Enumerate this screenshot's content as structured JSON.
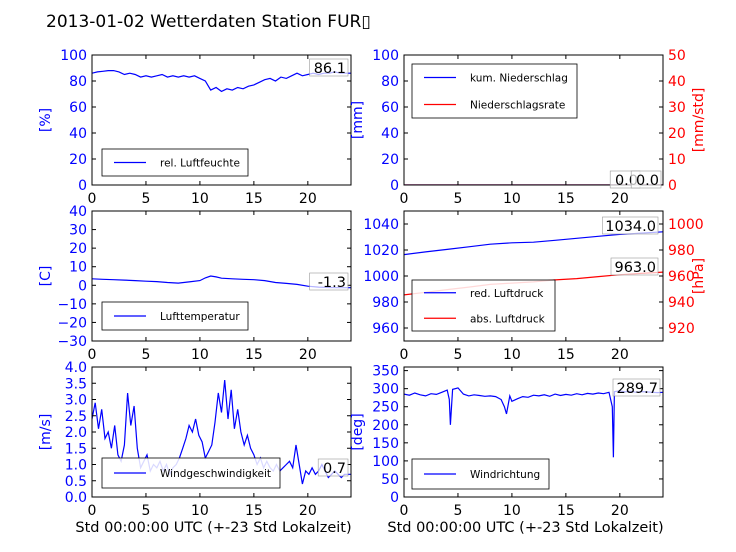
{
  "title": "2013-01-02 Wetterdaten Station FUR▯",
  "chart_data": [
    {
      "id": "humidity",
      "type": "line",
      "ylabel": "[%]",
      "xlim": [
        0,
        24
      ],
      "ylim": [
        0,
        100
      ],
      "yticks": [
        "0",
        "20",
        "40",
        "60",
        "80",
        "100"
      ],
      "xticks": [
        "0",
        "5",
        "10",
        "15",
        "20"
      ],
      "last_value_label": "86.1",
      "legend": [
        "rel. Luftfeuchte"
      ],
      "series": [
        {
          "name": "rel. Luftfeuchte",
          "color": "#0000ff",
          "x": [
            0,
            0.5,
            1,
            1.5,
            2,
            2.5,
            3,
            3.5,
            4,
            4.5,
            5,
            5.5,
            6,
            6.5,
            7,
            7.5,
            8,
            8.5,
            9,
            9.5,
            10,
            10.5,
            11,
            11.5,
            12,
            12.5,
            13,
            13.5,
            14,
            14.5,
            15,
            15.5,
            16,
            16.5,
            17,
            17.5,
            18,
            18.5,
            19,
            19.5,
            20,
            20.5,
            21,
            21.5,
            22,
            22.5,
            23,
            23.5,
            24
          ],
          "y": [
            86,
            87,
            87.5,
            88,
            88,
            87,
            85,
            86,
            85,
            83,
            84,
            83,
            84,
            85,
            83,
            84,
            83,
            84,
            83,
            84,
            82,
            80,
            73,
            75,
            72,
            74,
            73,
            75,
            74,
            76,
            77,
            79,
            81,
            82,
            80,
            83,
            82,
            84,
            86,
            84,
            85,
            86,
            85,
            86,
            86,
            87,
            86,
            86,
            86
          ]
        }
      ]
    },
    {
      "id": "precip",
      "type": "line",
      "ylabel": "[mm]",
      "y2label": "[mm/std]",
      "xlim": [
        0,
        24
      ],
      "ylim": [
        0,
        100
      ],
      "y2lim": [
        0,
        50
      ],
      "yticks": [
        "0",
        "20",
        "40",
        "60",
        "80",
        "100"
      ],
      "y2ticks": [
        "0",
        "10",
        "20",
        "30",
        "40",
        "50"
      ],
      "xticks": [
        "0",
        "5",
        "10",
        "15",
        "20"
      ],
      "last_value_labels": [
        "0.0",
        "0.0"
      ],
      "legend": [
        "kum. Niederschlag",
        "Niederschlagsrate"
      ],
      "series": [
        {
          "name": "kum. Niederschlag",
          "color": "#0000ff",
          "x": [
            0,
            24
          ],
          "y": [
            0,
            0
          ]
        },
        {
          "name": "Niederschlagsrate",
          "color": "#ff0000",
          "x": [
            0,
            24
          ],
          "y": [
            0,
            0
          ]
        }
      ]
    },
    {
      "id": "temperature",
      "type": "line",
      "ylabel": "[C]",
      "xlim": [
        0,
        24
      ],
      "ylim": [
        -30,
        40
      ],
      "yticks": [
        "−30",
        "−20",
        "−10",
        "0",
        "10",
        "20",
        "30",
        "40"
      ],
      "xticks": [
        "0",
        "5",
        "10",
        "15",
        "20"
      ],
      "last_value_label": "-1.3",
      "legend": [
        "Lufttemperatur"
      ],
      "series": [
        {
          "name": "Lufttemperatur",
          "color": "#0000ff",
          "x": [
            0,
            1,
            2,
            3,
            4,
            5,
            6,
            7,
            8,
            9,
            10,
            10.5,
            11,
            11.5,
            12,
            13,
            14,
            15,
            16,
            17,
            18,
            19,
            20,
            21,
            22,
            23,
            24
          ],
          "y": [
            3.5,
            3.2,
            3.0,
            2.8,
            2.5,
            2.2,
            2.0,
            1.5,
            1.2,
            1.8,
            2.5,
            4.0,
            5.0,
            4.5,
            3.8,
            3.5,
            3.2,
            3.0,
            2.5,
            1.5,
            1.0,
            0.5,
            -0.5,
            -1.0,
            -1.2,
            -1.3,
            -1.3
          ]
        }
      ]
    },
    {
      "id": "pressure",
      "type": "line",
      "y2label": "[hPa]",
      "xlim": [
        0,
        24
      ],
      "ylim": [
        950,
        1050
      ],
      "y2lim": [
        910,
        1010
      ],
      "yticks": [
        "960",
        "980",
        "1000",
        "1020",
        "1040"
      ],
      "y2ticks": [
        "920",
        "940",
        "960",
        "980",
        "1000"
      ],
      "xticks": [
        "0",
        "5",
        "10",
        "15",
        "20"
      ],
      "last_value_labels": [
        "1034.0",
        "963.0"
      ],
      "legend": [
        "red. Luftdruck",
        "abs. Luftdruck"
      ],
      "series": [
        {
          "name": "red. Luftdruck",
          "color": "#0000ff",
          "axis": "left",
          "x": [
            0,
            2,
            4,
            6,
            8,
            10,
            12,
            14,
            16,
            18,
            20,
            22,
            24
          ],
          "y": [
            1016.5,
            1018.5,
            1020.5,
            1022.5,
            1024.5,
            1025.5,
            1026,
            1027.5,
            1029,
            1030.5,
            1032,
            1033,
            1034
          ]
        },
        {
          "name": "abs. Luftdruck",
          "color": "#ff0000",
          "axis": "right",
          "x": [
            0,
            2,
            4,
            6,
            8,
            10,
            12,
            14,
            16,
            18,
            20,
            22,
            24
          ],
          "y": [
            945.5,
            947.5,
            949.5,
            951.5,
            953.5,
            954.5,
            955.5,
            957,
            958,
            959.5,
            961,
            962,
            963
          ]
        }
      ]
    },
    {
      "id": "wind_speed",
      "type": "line",
      "ylabel": "[m/s]",
      "xlabel": "Std 00:00:00 UTC (+-23 Std Lokalzeit)",
      "xlim": [
        0,
        24
      ],
      "ylim": [
        0,
        4
      ],
      "yticks": [
        "0.0",
        "0.5",
        "1.0",
        "1.5",
        "2.0",
        "2.5",
        "3.0",
        "3.5",
        "4.0"
      ],
      "xticks": [
        "0",
        "5",
        "10",
        "15",
        "20"
      ],
      "last_value_label": "0.7",
      "legend": [
        "Windgeschwindigkeit"
      ],
      "series": [
        {
          "name": "Windgeschwindigkeit",
          "color": "#0000ff",
          "x": [
            0,
            0.3,
            0.6,
            0.9,
            1.2,
            1.5,
            1.8,
            2.1,
            2.4,
            2.7,
            3.0,
            3.3,
            3.6,
            3.9,
            4.2,
            4.5,
            4.8,
            5.1,
            5.4,
            5.7,
            6.0,
            6.3,
            6.6,
            6.9,
            7.2,
            7.5,
            7.8,
            8.1,
            8.4,
            8.7,
            9.0,
            9.3,
            9.6,
            9.9,
            10.2,
            10.5,
            10.8,
            11.1,
            11.4,
            11.7,
            12.0,
            12.3,
            12.6,
            12.9,
            13.2,
            13.5,
            13.8,
            14.1,
            14.4,
            14.7,
            15.0,
            15.3,
            15.6,
            15.9,
            16.2,
            16.5,
            16.8,
            17.1,
            17.4,
            17.7,
            18.0,
            18.3,
            18.6,
            18.9,
            19.2,
            19.5,
            19.8,
            20.1,
            20.4,
            20.7,
            21.0,
            21.3,
            21.6,
            21.9,
            22.2,
            22.5,
            22.8,
            23.1,
            23.4,
            23.7,
            24.0
          ],
          "y": [
            2.4,
            2.9,
            2.1,
            2.7,
            1.8,
            2.0,
            1.5,
            2.2,
            1.3,
            1.1,
            1.6,
            3.2,
            2.2,
            2.8,
            1.5,
            0.9,
            1.1,
            1.3,
            0.8,
            1.0,
            0.9,
            1.1,
            0.8,
            1.0,
            0.7,
            0.9,
            1.0,
            1.2,
            1.5,
            1.8,
            2.2,
            2.0,
            2.4,
            1.9,
            1.7,
            1.2,
            1.4,
            1.6,
            2.3,
            3.2,
            2.6,
            3.6,
            2.4,
            3.3,
            2.1,
            2.7,
            2.0,
            1.6,
            1.9,
            1.5,
            1.3,
            1.0,
            1.2,
            0.9,
            1.1,
            0.9,
            0.8,
            1.0,
            0.8,
            0.9,
            1.0,
            1.1,
            0.9,
            1.6,
            1.0,
            0.4,
            0.8,
            0.7,
            0.9,
            0.7,
            0.8,
            1.0,
            0.8,
            0.6,
            0.7,
            0.8,
            0.7,
            0.6,
            0.7,
            0.7,
            0.7
          ]
        }
      ]
    },
    {
      "id": "wind_dir",
      "type": "line",
      "ylabel": "[deg]",
      "xlabel": "Std 00:00:00 UTC (+-23 Std Lokalzeit)",
      "xlim": [
        0,
        24
      ],
      "ylim": [
        0,
        360
      ],
      "yticks": [
        "0",
        "50",
        "100",
        "150",
        "200",
        "250",
        "300",
        "350"
      ],
      "xticks": [
        "0",
        "5",
        "10",
        "15",
        "20"
      ],
      "last_value_label": "289.7",
      "legend": [
        "Windrichtung"
      ],
      "series": [
        {
          "name": "Windrichtung",
          "color": "#0000ff",
          "x": [
            0,
            0.5,
            1,
            1.5,
            2,
            2.5,
            3,
            3.5,
            4,
            4.2,
            4.3,
            4.5,
            5,
            5.5,
            6,
            6.5,
            7,
            7.5,
            8,
            8.5,
            9,
            9.3,
            9.5,
            9.8,
            10,
            10.5,
            11,
            11.5,
            12,
            12.5,
            13,
            13.5,
            14,
            14.5,
            15,
            15.5,
            16,
            16.5,
            17,
            17.5,
            18,
            18.5,
            19,
            19.3,
            19.4,
            19.5,
            20,
            20.5,
            21,
            21.5,
            22,
            22.5,
            23,
            23.5,
            24
          ],
          "y": [
            285,
            282,
            288,
            283,
            280,
            286,
            284,
            290,
            296,
            270,
            200,
            298,
            302,
            285,
            280,
            283,
            281,
            279,
            280,
            278,
            270,
            250,
            230,
            280,
            265,
            272,
            278,
            276,
            282,
            280,
            283,
            279,
            285,
            281,
            284,
            282,
            286,
            283,
            287,
            285,
            288,
            286,
            290,
            250,
            110,
            292,
            294,
            291,
            293,
            290,
            292,
            291,
            290,
            289,
            290
          ]
        }
      ]
    }
  ]
}
